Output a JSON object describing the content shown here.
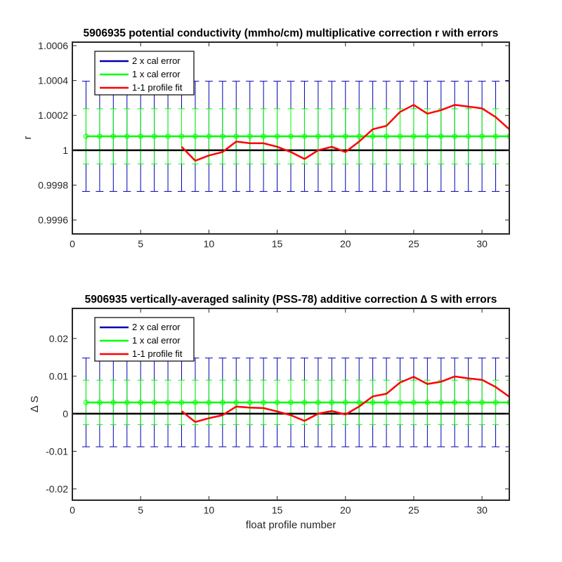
{
  "chart_data": [
    {
      "type": "line",
      "title": "5906935 potential conductivity (mmho/cm) multiplicative correction r with errors",
      "xlabel": "",
      "ylabel": "r",
      "xlim": [
        0,
        32
      ],
      "ylim": [
        0.99952,
        1.00062
      ],
      "x_ticks": [
        0,
        5,
        10,
        15,
        20,
        25,
        30
      ],
      "y_ticks": [
        0.9996,
        0.9998,
        1,
        1.0002,
        1.0004,
        1.0006
      ],
      "x_tick_labels": [
        "0",
        "5",
        "10",
        "15",
        "20",
        "25",
        "30"
      ],
      "y_tick_labels": [
        "0.9996",
        "0.9998",
        "1",
        "1.0002",
        "1.0004",
        "1.0006"
      ],
      "grid": false,
      "legend_position": "top-left",
      "reference_line": 1,
      "series": [
        {
          "name": "2 x cal error",
          "color": "#0000b0",
          "kind": "errorbar",
          "x": [
            1,
            2,
            3,
            4,
            5,
            6,
            7,
            8,
            9,
            10,
            11,
            12,
            13,
            14,
            15,
            16,
            17,
            18,
            19,
            20,
            21,
            22,
            23,
            24,
            25,
            26,
            27,
            28,
            29,
            30,
            31,
            32
          ],
          "center": 1.00008,
          "half_width": 0.000316
        },
        {
          "name": "1 x cal error",
          "color": "#00ff00",
          "kind": "errorbar",
          "x": [
            1,
            2,
            3,
            4,
            5,
            6,
            7,
            8,
            9,
            10,
            11,
            12,
            13,
            14,
            15,
            16,
            17,
            18,
            19,
            20,
            21,
            22,
            23,
            24,
            25,
            26,
            27,
            28,
            29,
            30,
            31,
            32
          ],
          "center": 1.00008,
          "half_width": 0.000158
        },
        {
          "name": "1-1 profile fit",
          "color": "#ff0000",
          "kind": "line",
          "x": [
            8,
            9,
            10,
            11,
            12,
            13,
            14,
            15,
            16,
            17,
            18,
            19,
            20,
            21,
            22,
            23,
            24,
            25,
            26,
            27,
            28,
            29,
            30,
            31,
            32
          ],
          "y": [
            1.00002,
            0.99994,
            0.99997,
            0.99999,
            1.00005,
            1.00004,
            1.00004,
            1.00002,
            0.99999,
            0.99995,
            1.0,
            1.00002,
            0.99999,
            1.00005,
            1.00012,
            1.00014,
            1.00022,
            1.00026,
            1.00021,
            1.00023,
            1.00026,
            1.00025,
            1.00024,
            1.00019,
            1.00012
          ]
        }
      ]
    },
    {
      "type": "line",
      "title": "5906935 vertically-averaged salinity (PSS-78) additive correction ∆ S with errors",
      "xlabel": "float profile number",
      "ylabel": "∆ S",
      "xlim": [
        0,
        32
      ],
      "ylim": [
        -0.023,
        0.028
      ],
      "x_ticks": [
        0,
        5,
        10,
        15,
        20,
        25,
        30
      ],
      "y_ticks": [
        -0.02,
        -0.01,
        0,
        0.01,
        0.02
      ],
      "x_tick_labels": [
        "0",
        "5",
        "10",
        "15",
        "20",
        "25",
        "30"
      ],
      "y_tick_labels": [
        "-0.02",
        "-0.01",
        "0",
        "0.01",
        "0.02"
      ],
      "grid": false,
      "legend_position": "top-left",
      "reference_line": 0,
      "series": [
        {
          "name": "2 x cal error",
          "color": "#0000b0",
          "kind": "errorbar",
          "x": [
            1,
            2,
            3,
            4,
            5,
            6,
            7,
            8,
            9,
            10,
            11,
            12,
            13,
            14,
            15,
            16,
            17,
            18,
            19,
            20,
            21,
            22,
            23,
            24,
            25,
            26,
            27,
            28,
            29,
            30,
            31,
            32
          ],
          "center": 0.003,
          "half_width": 0.0118
        },
        {
          "name": "1 x cal error",
          "color": "#00ff00",
          "kind": "errorbar",
          "x": [
            1,
            2,
            3,
            4,
            5,
            6,
            7,
            8,
            9,
            10,
            11,
            12,
            13,
            14,
            15,
            16,
            17,
            18,
            19,
            20,
            21,
            22,
            23,
            24,
            25,
            26,
            27,
            28,
            29,
            30,
            31,
            32
          ],
          "center": 0.003,
          "half_width": 0.0059
        },
        {
          "name": "1-1 profile fit",
          "color": "#ff0000",
          "kind": "line",
          "x": [
            8,
            9,
            10,
            11,
            12,
            13,
            14,
            15,
            16,
            17,
            18,
            19,
            20,
            21,
            22,
            23,
            24,
            25,
            26,
            27,
            28,
            29,
            30,
            31,
            32
          ],
          "y": [
            0.0007,
            -0.0022,
            -0.0012,
            -0.0004,
            0.0019,
            0.0016,
            0.0015,
            0.0006,
            -0.0004,
            -0.0019,
            0.0,
            0.0007,
            -0.0002,
            0.0019,
            0.0046,
            0.0053,
            0.0083,
            0.0098,
            0.0079,
            0.0085,
            0.0099,
            0.0094,
            0.009,
            0.0071,
            0.0045
          ]
        }
      ]
    }
  ]
}
